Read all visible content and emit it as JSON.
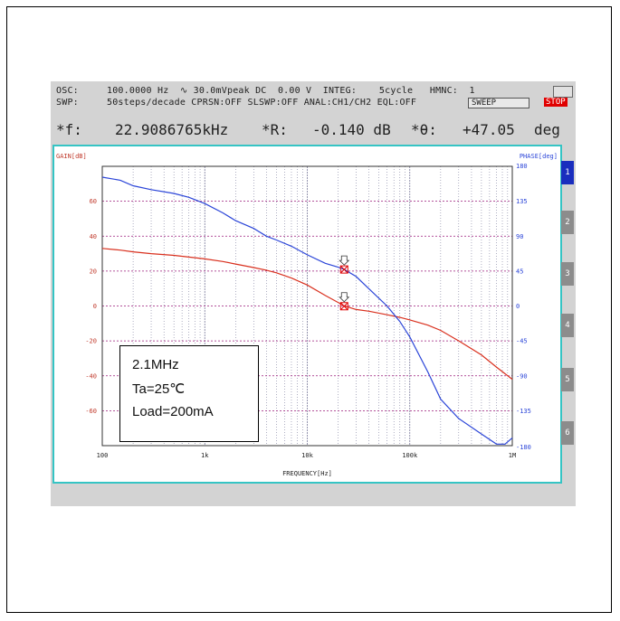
{
  "header": {
    "line1": "OSC:     100.0000 Hz  ∿ 30.0mVpeak DC  0.00 V  INTEG:    5cycle   HMNC:  1",
    "line2": "SWP:     50steps/decade CPRSN:OFF SLSWP:OFF ANAL:CH1/CH2 EQL:OFF",
    "sweep_label": "SWEEP",
    "stop_label": "STOP",
    "f_label": "*f:",
    "f_value": "22.9086765kHz",
    "r_label": "*R:",
    "r_value": "-0.140 dB",
    "theta_label": "*θ:",
    "theta_value": "+47.05",
    "theta_unit": "deg"
  },
  "side_tabs": [
    "1",
    "2",
    "3",
    "4",
    "5",
    "6"
  ],
  "legend": {
    "line1": "2.1MHz",
    "line2": "Ta=25℃",
    "line3": "Load=200mA"
  },
  "colors": {
    "gain": "#d9301e",
    "phase": "#2b45d8",
    "frame": "#35c4c4",
    "grid_h": "#9a1a7a",
    "grid_v": "#7a7a9a"
  },
  "chart_data": {
    "type": "line",
    "xlabel": "FREQUENCY[Hz]",
    "y_left_label": "GAIN[dB]",
    "y_right_label": "PHASE[deg]",
    "x_scale": "log",
    "xlim": [
      100,
      1000000
    ],
    "x_ticks": [
      100,
      1000,
      10000,
      100000,
      1000000
    ],
    "x_tick_labels": [
      "100",
      "1k",
      "10k",
      "100k",
      "1M"
    ],
    "ylim_left": [
      -80,
      80
    ],
    "y_left_ticks": [
      -60,
      -40,
      -20,
      0,
      20,
      40,
      60
    ],
    "ylim_right": [
      -180,
      180
    ],
    "y_right_ticks": [
      -180,
      -135,
      -90,
      -45,
      0,
      45,
      90,
      135,
      180
    ],
    "grid": true,
    "series": [
      {
        "axis": "left",
        "x": [
          100,
          150,
          200,
          300,
          500,
          700,
          1000,
          1500,
          2000,
          3000,
          4000,
          5000,
          7000,
          10000,
          15000,
          20000,
          23000,
          30000,
          40000,
          60000,
          80000,
          100000,
          150000,
          200000,
          300000,
          500000,
          700000,
          1000000
        ],
        "values": [
          33,
          32,
          31,
          30,
          29,
          28,
          27,
          25.5,
          24,
          22,
          20.5,
          19,
          16,
          12,
          6,
          2,
          0,
          -2,
          -3,
          -5,
          -6.5,
          -8,
          -11,
          -14,
          -20,
          -28,
          -35,
          -42
        ]
      },
      {
        "axis": "right",
        "x": [
          100,
          150,
          200,
          300,
          500,
          700,
          1000,
          1500,
          2000,
          3000,
          4000,
          5000,
          7000,
          10000,
          15000,
          20000,
          23000,
          30000,
          40000,
          60000,
          80000,
          100000,
          150000,
          200000,
          300000,
          500000,
          700000,
          850000,
          1000000
        ],
        "values": [
          166,
          162,
          155,
          150,
          145,
          140,
          132,
          120,
          110,
          100,
          90,
          85,
          77,
          66,
          55,
          50,
          47,
          38,
          22,
          0,
          -20,
          -40,
          -85,
          -120,
          -145,
          -165,
          -178,
          -178,
          -170
        ]
      }
    ],
    "markers": [
      {
        "x": 22908.6765,
        "y_left": -0.14
      },
      {
        "x": 22908.6765,
        "y_right": 47.05
      }
    ]
  }
}
